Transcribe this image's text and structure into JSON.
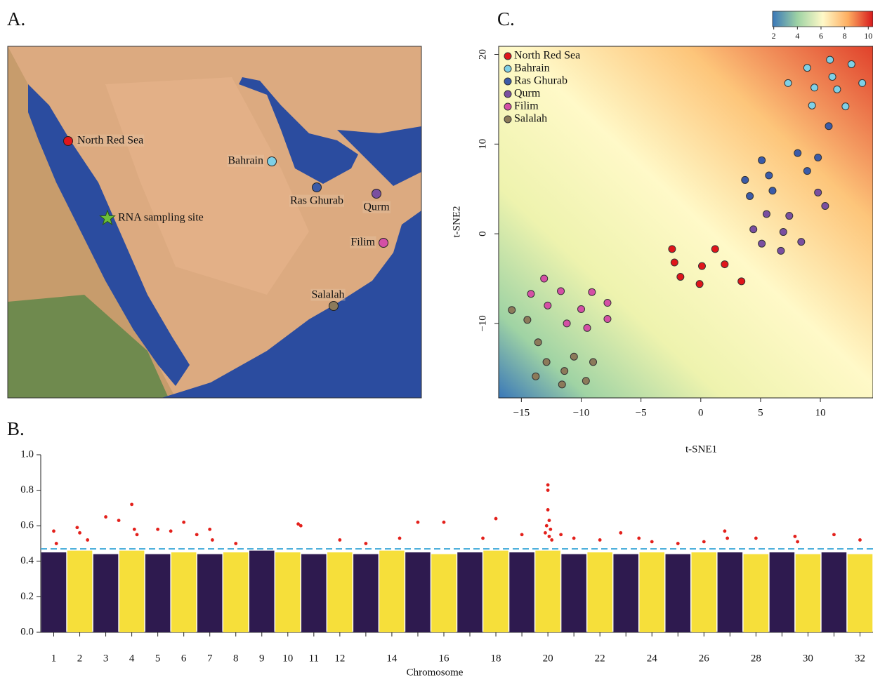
{
  "chart_data": [
    {
      "type": "map",
      "title": "A.",
      "sites": [
        {
          "name": "North Red Sea",
          "color": "#e0151b"
        },
        {
          "name": "Bahrain",
          "color": "#7fd0e6"
        },
        {
          "name": "Ras Ghurab",
          "color": "#3b5ba8"
        },
        {
          "name": "Qurm",
          "color": "#7a4fa0"
        },
        {
          "name": "Filim",
          "color": "#d44fa5"
        },
        {
          "name": "Salalah",
          "color": "#8c7a5a"
        }
      ],
      "sampling_site": {
        "name": "RNA sampling site",
        "color": "#6bbf3a"
      }
    },
    {
      "type": "manhattan",
      "title": "B.",
      "x_label": "Chromosome",
      "categories": [
        "1",
        "2",
        "3",
        "4",
        "5",
        "6",
        "7",
        "8",
        "9",
        "10",
        "11",
        "12",
        null,
        "14",
        null,
        "16",
        null,
        "18",
        null,
        "20",
        null,
        "22",
        null,
        "24",
        null,
        "26",
        null,
        "28",
        null,
        "30",
        null,
        "32"
      ],
      "values": [
        0.45,
        0.46,
        0.44,
        0.46,
        0.44,
        0.45,
        0.44,
        0.45,
        0.46,
        0.45,
        0.44,
        0.45,
        0.44,
        0.46,
        0.45,
        0.44,
        0.45,
        0.46,
        0.45,
        0.46,
        0.44,
        0.45,
        0.44,
        0.45,
        0.44,
        0.45,
        0.45,
        0.44,
        0.45,
        0.44,
        0.45,
        0.44
      ],
      "colors": [
        "#2e1a4f",
        "#f6df3a"
      ],
      "xlim": [
        0.5,
        32.5
      ],
      "ylim": [
        0,
        1
      ],
      "yticks": [
        {
          "value": 0,
          "label": "0.0"
        },
        {
          "value": 0.2,
          "label": "0.2"
        },
        {
          "value": 0.4,
          "label": "0.4"
        },
        {
          "value": 0.6,
          "label": "0.6"
        },
        {
          "value": 0.8,
          "label": "0.8"
        },
        {
          "value": 1,
          "label": "1.0"
        }
      ],
      "threshold": 0.47,
      "threshold_color": "#3aa6d8",
      "significant": {
        "color": "#e3201b",
        "x": [
          1.0,
          1.1,
          1.9,
          2.0,
          2.3,
          3.0,
          3.5,
          4.0,
          4.1,
          4.2,
          5.0,
          5.5,
          6.0,
          6.5,
          7.0,
          7.1,
          8.0,
          10.4,
          10.5,
          12.0,
          13.0,
          14.3,
          15.0,
          16.0,
          17.5,
          18.0,
          19.0,
          20.0,
          20.0,
          20.0,
          20.05,
          19.95,
          20.1,
          19.9,
          20.05,
          20.15,
          20.5,
          21.0,
          22.0,
          22.8,
          23.5,
          24.0,
          25.0,
          26.0,
          26.8,
          26.9,
          28.0,
          29.5,
          29.6,
          31.0,
          32.0
        ],
        "y": [
          0.57,
          0.5,
          0.59,
          0.56,
          0.52,
          0.65,
          0.63,
          0.72,
          0.58,
          0.55,
          0.58,
          0.57,
          0.62,
          0.55,
          0.58,
          0.52,
          0.5,
          0.61,
          0.6,
          0.52,
          0.5,
          0.53,
          0.62,
          0.62,
          0.53,
          0.64,
          0.55,
          0.83,
          0.8,
          0.69,
          0.63,
          0.6,
          0.58,
          0.56,
          0.54,
          0.52,
          0.55,
          0.53,
          0.52,
          0.56,
          0.53,
          0.51,
          0.5,
          0.51,
          0.57,
          0.53,
          0.53,
          0.54,
          0.51,
          0.55,
          0.52
        ]
      }
    },
    {
      "type": "scatter",
      "title": "C.",
      "x_label": "t-SNE1",
      "y_label": "t-SNE2",
      "xlim": [
        -16.9,
        14.4
      ],
      "ylim": [
        -18.3,
        20.9
      ],
      "xticks": [
        {
          "value": -15,
          "label": "−15"
        },
        {
          "value": -10,
          "label": "−10"
        },
        {
          "value": -5,
          "label": "−5"
        },
        0,
        5,
        10
      ],
      "yticks": [
        {
          "value": -10,
          "label": "−10"
        },
        0,
        10,
        20
      ],
      "legend": "top-left",
      "colorbar": {
        "lim": [
          1.9,
          10.4
        ],
        "ticks": [
          2,
          4,
          6,
          8,
          10
        ]
      },
      "series": [
        {
          "name": "North Red Sea",
          "color": "#e0151b",
          "x": [
            -2.4,
            1.2,
            -2.2,
            0.1,
            2.0,
            -1.7,
            -0.1,
            3.4
          ],
          "y": [
            -1.7,
            -1.7,
            -3.2,
            -3.6,
            -3.4,
            -4.8,
            -5.6,
            -5.3
          ]
        },
        {
          "name": "Bahrain",
          "color": "#7fd0e6",
          "x": [
            10.8,
            8.9,
            12.6,
            11.0,
            7.3,
            9.5,
            11.4,
            13.5,
            9.3,
            12.1
          ],
          "y": [
            19.4,
            18.5,
            18.9,
            17.5,
            16.8,
            16.3,
            16.1,
            16.8,
            14.3,
            14.2
          ]
        },
        {
          "name": "Ras Ghurab",
          "color": "#3b5ba8",
          "x": [
            10.7,
            8.1,
            9.8,
            5.1,
            8.9,
            5.7,
            3.7,
            6.0,
            4.1
          ],
          "y": [
            12.0,
            9.0,
            8.5,
            8.2,
            7.0,
            6.5,
            6.0,
            4.8,
            4.2
          ]
        },
        {
          "name": "Qurm",
          "color": "#7a4fa0",
          "x": [
            9.8,
            10.4,
            5.5,
            7.4,
            4.4,
            6.9,
            5.1,
            8.4,
            6.7
          ],
          "y": [
            4.6,
            3.1,
            2.2,
            2.0,
            0.5,
            0.2,
            -1.1,
            -0.9,
            -1.9
          ]
        },
        {
          "name": "Filim",
          "color": "#d44fa5",
          "x": [
            -13.1,
            -14.2,
            -11.7,
            -9.1,
            -12.8,
            -7.8,
            -10.0,
            -7.8,
            -11.2,
            -9.5
          ],
          "y": [
            -5.0,
            -6.7,
            -6.4,
            -6.5,
            -8.0,
            -7.7,
            -8.4,
            -9.5,
            -10.0,
            -10.5
          ]
        },
        {
          "name": "Salalah",
          "color": "#8c7a5a",
          "x": [
            -15.8,
            -14.5,
            -13.6,
            -10.6,
            -12.9,
            -9.0,
            -11.4,
            -13.8,
            -9.6,
            -11.6
          ],
          "y": [
            -8.5,
            -9.6,
            -12.1,
            -13.7,
            -14.3,
            -14.3,
            -15.3,
            -15.9,
            -16.4,
            -16.8
          ]
        }
      ]
    }
  ]
}
